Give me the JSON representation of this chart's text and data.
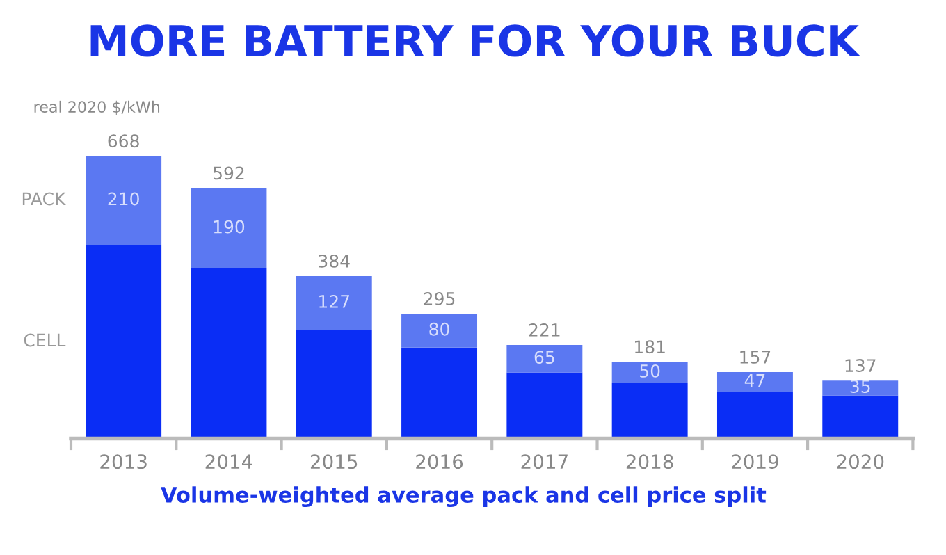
{
  "chart_data": {
    "type": "bar",
    "title": "MORE BATTERY FOR YOUR BUCK",
    "ylabel": "real 2020 $/kWh",
    "xlabel": "Volume-weighted average pack and cell price split",
    "categories": [
      "2013",
      "2014",
      "2015",
      "2016",
      "2017",
      "2018",
      "2019",
      "2020"
    ],
    "stacked": true,
    "tick_labels": "x",
    "grid": false,
    "legend": false,
    "series": [
      {
        "name": "CELL",
        "color": "#0a2df5",
        "values": [
          458,
          402,
          257,
          215,
          156,
          131,
          110,
          102
        ]
      },
      {
        "name": "PACK",
        "color": "#5b78f2",
        "values": [
          210,
          190,
          127,
          80,
          65,
          50,
          47,
          35
        ],
        "value_labels": [
          "210",
          "190",
          "127",
          "80",
          "65",
          "50",
          "47",
          "35"
        ]
      }
    ],
    "totals": [
      "668",
      "592",
      "384",
      "295",
      "221",
      "181",
      "157",
      "137"
    ]
  }
}
